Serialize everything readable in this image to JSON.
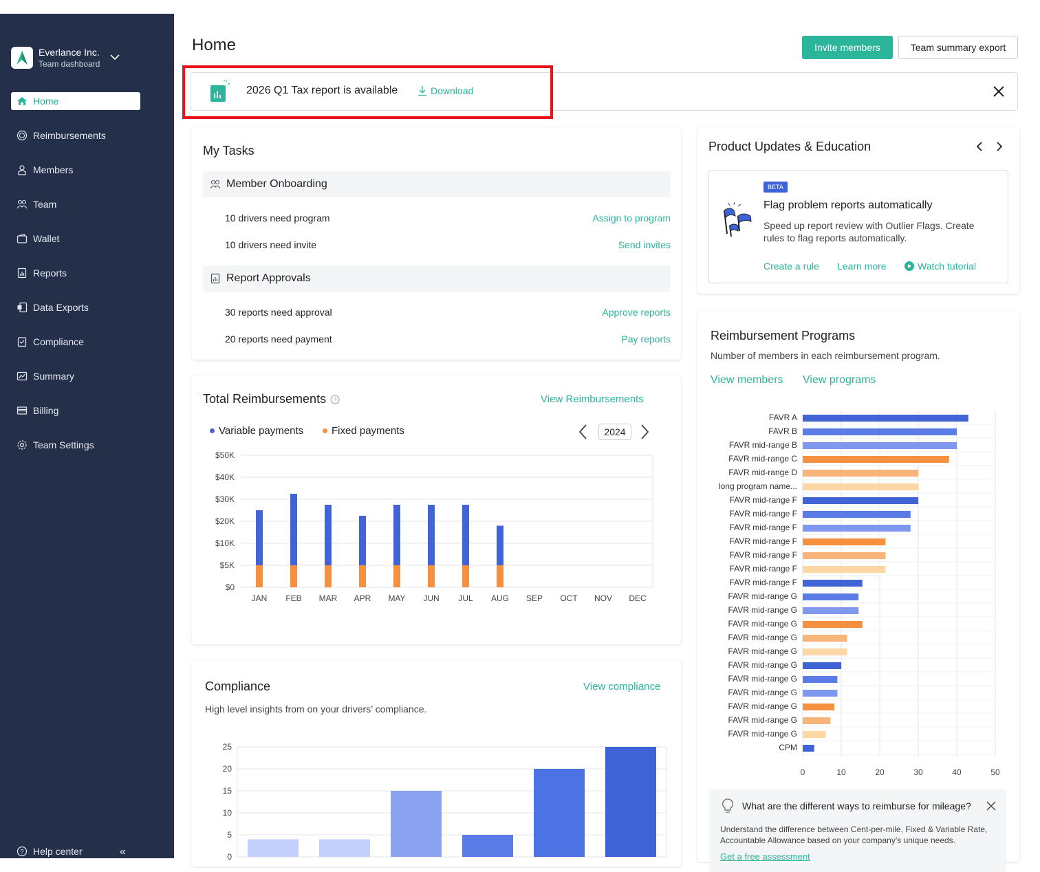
{
  "sidebar": {
    "company": "Everlance Inc.",
    "subtitle": "Team dashboard",
    "items": [
      {
        "label": "Home",
        "icon": "home-icon",
        "active": true
      },
      {
        "label": "Reimbursements",
        "icon": "reimbursement-icon"
      },
      {
        "label": "Members",
        "icon": "member-icon"
      },
      {
        "label": "Team",
        "icon": "team-icon"
      },
      {
        "label": "Wallet",
        "icon": "wallet-icon"
      },
      {
        "label": "Reports",
        "icon": "report-icon"
      },
      {
        "label": "Data Exports",
        "icon": "data-export-icon"
      },
      {
        "label": "Compliance",
        "icon": "compliance-icon"
      },
      {
        "label": "Summary",
        "icon": "summary-icon"
      },
      {
        "label": "Billing",
        "icon": "billing-icon"
      },
      {
        "label": "Team Settings",
        "icon": "gear-icon"
      }
    ],
    "help": "Help center"
  },
  "header": {
    "title": "Home",
    "invite_label": "Invite members",
    "export_label": "Team summary export"
  },
  "banner": {
    "text": "2026 Q1 Tax report is available",
    "download": "Download"
  },
  "tasks": {
    "title": "My Tasks",
    "sections": [
      {
        "title": "Member Onboarding",
        "rows": [
          {
            "text": "10 drivers need program",
            "action": "Assign to program"
          },
          {
            "text": "10 drivers need invite",
            "action": "Send invites"
          }
        ]
      },
      {
        "title": "Report Approvals",
        "rows": [
          {
            "text": "30 reports need approval",
            "action": "Approve reports"
          },
          {
            "text": "20 reports need payment",
            "action": "Pay reports"
          }
        ]
      }
    ]
  },
  "total": {
    "title": "Total Reimbursements",
    "link": "View Reimbursements",
    "legend_variable": "Variable payments",
    "legend_fixed": "Fixed payments",
    "year": "2024"
  },
  "compliance": {
    "title": "Compliance",
    "link": "View compliance",
    "subtitle": "High level insights from on your drivers’ compliance."
  },
  "updates": {
    "title": "Product Updates & Education",
    "badge": "BETA",
    "heading": "Flag problem reports automatically",
    "body": "Speed up report review with Outlier Flags.  Create rules to flag reports automatically.",
    "link1": "Create a rule",
    "link2": "Learn more",
    "link3": "Watch tutorial"
  },
  "programs": {
    "title": "Reimbursement Programs",
    "subtitle": "Number of members in each reimbursement program.",
    "link1": "View members",
    "link2": "View programs",
    "tip_title": "What are the different ways to reimburse for mileage?",
    "tip_body": "Understand the difference between Cent-per-mile, Fixed & Variable Rate, Accountable Allowance based on your company’s unique needs.",
    "tip_link": "Get a free assessment"
  },
  "colors": {
    "accent": "#2bb59a",
    "sidebar": "#24304a",
    "variable": "#4263d6",
    "fixed": "#f5913e"
  },
  "chart_data": [
    {
      "type": "bar",
      "title": "Total Reimbursements",
      "categories": [
        "JAN",
        "FEB",
        "MAR",
        "APR",
        "MAY",
        "JUN",
        "JUL",
        "AUG",
        "SEP",
        "OCT",
        "NOV",
        "DEC"
      ],
      "y_ticks": [
        "$0",
        "$5K",
        "$10K",
        "$20K",
        "$30K",
        "$40K",
        "$50K"
      ],
      "series": [
        {
          "name": "Variable payments",
          "color": "#4263d6",
          "values": [
            20000,
            27500,
            22500,
            17500,
            22500,
            22500,
            22500,
            13000,
            0,
            0,
            0,
            0
          ]
        },
        {
          "name": "Fixed payments",
          "color": "#f5913e",
          "values": [
            5000,
            5000,
            5000,
            5000,
            5000,
            5000,
            5000,
            5000,
            0,
            0,
            0,
            0
          ]
        }
      ],
      "stacked": true
    },
    {
      "type": "bar",
      "title": "Compliance",
      "y_ticks": [
        "0",
        "5",
        "10",
        "15",
        "20",
        "25"
      ],
      "ylim": [
        0,
        25
      ],
      "values": [
        4,
        4,
        15,
        5,
        20,
        25
      ],
      "colors": [
        "#c3d0fb",
        "#c3d0fb",
        "#8aa2f0",
        "#5b7ce6",
        "#4d72e3",
        "#3d63d6"
      ]
    },
    {
      "type": "bar",
      "orientation": "horizontal",
      "title": "Reimbursement Programs",
      "categories": [
        "FAVR A",
        "FAVR B",
        "FAVR mid-range B",
        "FAVR mid-range C",
        "FAVR mid-range D",
        "long program name...",
        "FAVR mid-range F",
        "FAVR mid-range F",
        "FAVR mid-range F",
        "FAVR mid-range F",
        "FAVR mid-range F",
        "FAVR mid-range F",
        "FAVR mid-range F",
        "FAVR mid-range G",
        "FAVR mid-range G",
        "FAVR mid-range G",
        "FAVR mid-range G",
        "FAVR mid-range G",
        "FAVR mid-range G",
        "FAVR mid-range G",
        "FAVR mid-range G",
        "FAVR mid-range G",
        "FAVR mid-range G",
        "FAVR mid-range G",
        "CPM"
      ],
      "values": [
        43,
        40,
        40,
        38,
        30,
        30,
        30,
        28,
        28,
        21.5,
        21.5,
        21.5,
        15.5,
        14.5,
        14.5,
        15.5,
        11.5,
        11.5,
        10,
        9,
        9,
        8.2,
        7.2,
        6,
        3
      ],
      "colors": [
        "#4263d6",
        "#5b7ce6",
        "#7e98ee",
        "#f5913e",
        "#f9b47c",
        "#fcd6a4",
        "#4263d6",
        "#5b7ce6",
        "#7e98ee",
        "#f5913e",
        "#f9b47c",
        "#fcd6a4",
        "#4263d6",
        "#5b7ce6",
        "#7e98ee",
        "#f5913e",
        "#f9b47c",
        "#fcd6a4",
        "#4263d6",
        "#5b7ce6",
        "#7e98ee",
        "#f5913e",
        "#f9b47c",
        "#fcd6a4",
        "#4263d6"
      ],
      "x_ticks": [
        "0",
        "10",
        "20",
        "30",
        "40",
        "50"
      ],
      "xlim": [
        0,
        50
      ]
    }
  ]
}
